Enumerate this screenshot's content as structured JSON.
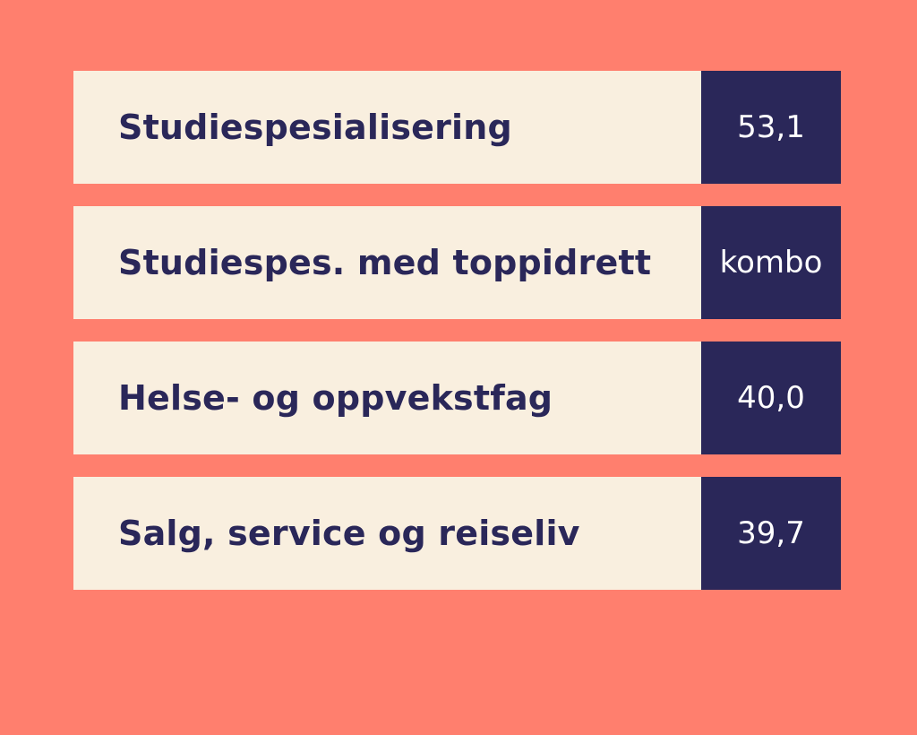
{
  "colors": {
    "background": "#FF7F6E",
    "label_bg": "#F9EFDF",
    "value_bg": "#2A2759",
    "label_text": "#2A2759",
    "value_text": "#FFFFFF"
  },
  "rows": [
    {
      "label": "Studiespesialisering",
      "value": "53,1"
    },
    {
      "label": "Studiespes. med toppidrett",
      "value": "kombo"
    },
    {
      "label": "Helse- og oppvekstfag",
      "value": "40,0"
    },
    {
      "label": "Salg, service og reiseliv",
      "value": "39,7"
    }
  ]
}
